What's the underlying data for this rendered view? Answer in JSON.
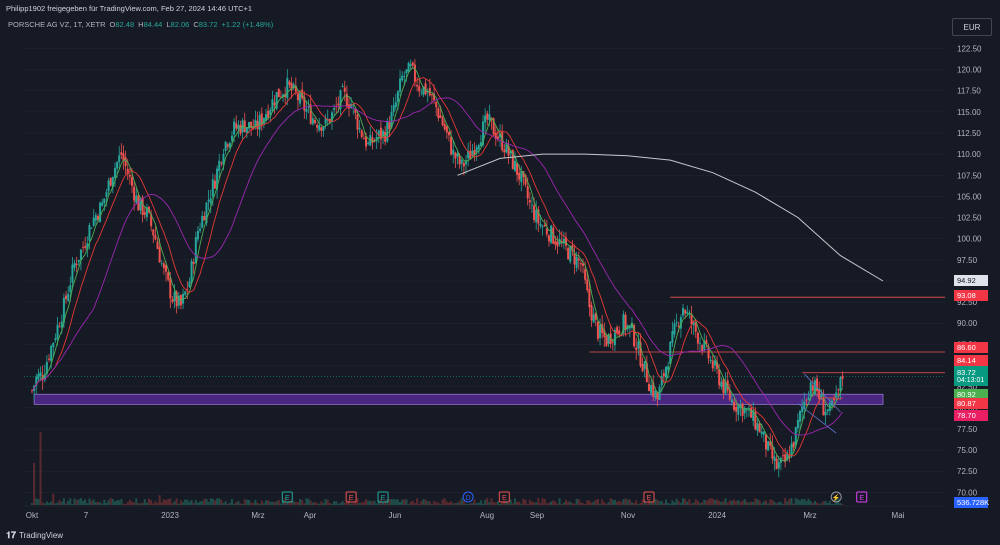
{
  "header": {
    "share_text": "Philipp1902 freigegeben für TradingView.com, Feb 27, 2024 14:46 UTC+1",
    "symbol": "PORSCHE AG VZ, 1T, XETR",
    "o_label": "O",
    "o": "82.48",
    "h_label": "H",
    "h": "84.44",
    "l_label": "L",
    "l": "82.06",
    "c_label": "C",
    "c": "83.72",
    "change": "+1.22 (+1.48%)",
    "currency": "EUR"
  },
  "footer": {
    "brand": "TradingView"
  },
  "colors": {
    "up": "#26a69a",
    "down": "#ef5350",
    "bg": "#161a25",
    "grid": "#232632",
    "sma_white": "#c7c9cf",
    "sma_purple": "#9c27b0",
    "ema_red": "#e53935",
    "ema_green": "#4caf50",
    "zone": "#5b2ca0"
  },
  "price_tags": [
    {
      "label": "94.92",
      "bg": "#e0e3eb",
      "fg": "#131722"
    },
    {
      "label": "93.08",
      "bg": "#f23645",
      "fg": "#ffffff"
    },
    {
      "label": "86.60",
      "bg": "#f23645",
      "fg": "#ffffff"
    },
    {
      "label": "84.14",
      "bg": "#f23645",
      "fg": "#ffffff"
    },
    {
      "label": "83.72",
      "sub": "04:13:01",
      "bg": "#089981",
      "fg": "#ffffff"
    },
    {
      "label": "80.92",
      "bg": "#4caf50",
      "fg": "#ffffff"
    },
    {
      "label": "80.87",
      "bg": "#f23645",
      "fg": "#ffffff"
    },
    {
      "label": "78.70",
      "bg": "#e91e63",
      "fg": "#ffffff"
    },
    {
      "label": "536.728K",
      "bg": "#2962ff",
      "fg": "#ffffff"
    }
  ],
  "chart_data": {
    "type": "candlestick",
    "title": "PORSCHE AG VZ, 1T, XETR",
    "ylim": [
      68.5,
      123.5
    ],
    "y_ticks": [
      "122.50",
      "120.00",
      "117.50",
      "115.00",
      "112.50",
      "110.00",
      "107.50",
      "105.00",
      "102.50",
      "100.00",
      "97.50",
      "95.00",
      "92.50",
      "90.00",
      "87.50",
      "85.00",
      "82.50",
      "80.00",
      "77.50",
      "75.00",
      "72.50",
      "70.00"
    ],
    "x_ticks": [
      "Okt",
      "7",
      "2023",
      "Mrz",
      "Apr",
      "Jun",
      "Aug",
      "Sep",
      "Nov",
      "2024",
      "Mrz",
      "Mai"
    ],
    "price_path": [
      [
        0,
        82
      ],
      [
        2,
        83.5
      ],
      [
        5,
        84
      ],
      [
        10,
        88
      ],
      [
        15,
        92
      ],
      [
        20,
        97
      ],
      [
        24,
        99
      ],
      [
        28,
        102
      ],
      [
        33,
        104
      ],
      [
        38,
        108
      ],
      [
        42,
        110
      ],
      [
        46,
        107
      ],
      [
        50,
        104
      ],
      [
        54,
        103
      ],
      [
        58,
        100
      ],
      [
        62,
        96
      ],
      [
        66,
        93
      ],
      [
        70,
        92
      ],
      [
        74,
        95
      ],
      [
        78,
        101
      ],
      [
        82,
        104
      ],
      [
        86,
        107
      ],
      [
        90,
        111
      ],
      [
        95,
        113
      ],
      [
        100,
        113.5
      ],
      [
        105,
        113
      ],
      [
        110,
        115
      ],
      [
        115,
        117
      ],
      [
        120,
        118
      ],
      [
        124,
        117
      ],
      [
        128,
        115.5
      ],
      [
        133,
        114
      ],
      [
        138,
        113.5
      ],
      [
        142,
        115
      ],
      [
        146,
        117
      ],
      [
        150,
        116
      ],
      [
        154,
        113
      ],
      [
        158,
        111
      ],
      [
        162,
        112
      ],
      [
        166,
        112.5
      ],
      [
        170,
        115
      ],
      [
        174,
        119
      ],
      [
        178,
        120
      ],
      [
        182,
        118
      ],
      [
        186,
        117.5
      ],
      [
        190,
        115.5
      ],
      [
        194,
        113
      ],
      [
        198,
        110
      ],
      [
        202,
        108.5
      ],
      [
        206,
        110
      ],
      [
        210,
        112
      ],
      [
        214,
        114
      ],
      [
        218,
        112.5
      ],
      [
        222,
        111
      ],
      [
        226,
        109
      ],
      [
        230,
        107
      ],
      [
        234,
        104
      ],
      [
        238,
        102
      ],
      [
        242,
        101
      ],
      [
        246,
        100
      ],
      [
        250,
        99
      ],
      [
        254,
        98
      ],
      [
        258,
        97
      ],
      [
        262,
        92
      ],
      [
        266,
        89
      ],
      [
        270,
        88
      ],
      [
        274,
        89
      ],
      [
        278,
        90
      ],
      [
        282,
        89
      ],
      [
        286,
        86
      ],
      [
        290,
        83
      ],
      [
        294,
        81
      ],
      [
        298,
        85
      ],
      [
        302,
        89
      ],
      [
        306,
        92
      ],
      [
        310,
        90
      ],
      [
        314,
        88
      ],
      [
        318,
        86
      ],
      [
        322,
        84
      ],
      [
        326,
        82
      ],
      [
        330,
        80.5
      ],
      [
        334,
        80
      ],
      [
        338,
        79
      ],
      [
        342,
        77.5
      ],
      [
        346,
        75
      ],
      [
        350,
        73
      ],
      [
        354,
        73.5
      ],
      [
        358,
        76
      ],
      [
        362,
        80
      ],
      [
        366,
        83
      ],
      [
        369,
        82
      ],
      [
        372,
        80
      ],
      [
        375,
        79.5
      ],
      [
        378,
        81
      ],
      [
        381,
        83.72
      ]
    ],
    "volume_peaks": [
      {
        "i": 4,
        "v": 5.2
      },
      {
        "i": 1,
        "v": 3.0
      },
      {
        "i": 10,
        "v": 0.8
      },
      {
        "i": 60,
        "v": 0.7
      }
    ],
    "sma_long": [
      [
        200,
        107.5
      ],
      [
        220,
        109.5
      ],
      [
        240,
        110
      ],
      [
        260,
        110
      ],
      [
        280,
        109.8
      ],
      [
        300,
        109.3
      ],
      [
        320,
        107.8
      ],
      [
        340,
        105.5
      ],
      [
        360,
        102.5
      ],
      [
        380,
        98
      ],
      [
        400,
        95
      ]
    ],
    "horizontal_lines": [
      {
        "price": 93.08,
        "from_index": 300,
        "color": "#ef5350"
      },
      {
        "price": 86.6,
        "from_index": 262,
        "color": "#ef5350"
      },
      {
        "price": 84.14,
        "from_index": 362,
        "color": "#ef5350"
      }
    ],
    "zone": {
      "low": 80.4,
      "high": 81.6,
      "from_index": 1,
      "to_index": 400
    },
    "event_markers": [
      {
        "index": 120,
        "label": "E",
        "color": "#26a69a"
      },
      {
        "index": 150,
        "label": "E",
        "color": "#ef5350"
      },
      {
        "index": 165,
        "label": "E",
        "color": "#26a69a"
      },
      {
        "index": 205,
        "label": "D",
        "color": "#2962ff"
      },
      {
        "index": 222,
        "label": "E",
        "color": "#ef5350"
      },
      {
        "index": 290,
        "label": "E",
        "color": "#ef5350"
      },
      {
        "index": 378,
        "label": "⚡",
        "color": "#9598a1"
      },
      {
        "index": 390,
        "label": "E",
        "color": "#e040fb"
      }
    ]
  }
}
